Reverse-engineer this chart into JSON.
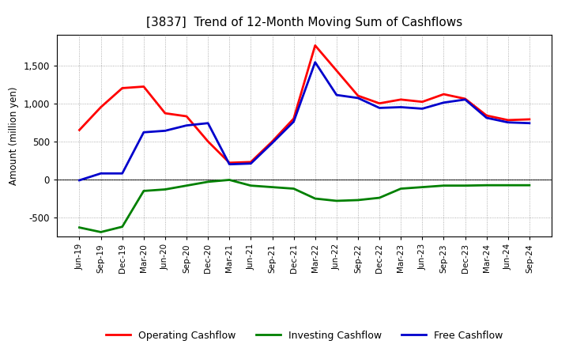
{
  "title": "[3837]  Trend of 12-Month Moving Sum of Cashflows",
  "ylabel": "Amount (million yen)",
  "xlabels": [
    "Jun-19",
    "Sep-19",
    "Dec-19",
    "Mar-20",
    "Jun-20",
    "Sep-20",
    "Dec-20",
    "Mar-21",
    "Jun-21",
    "Sep-21",
    "Dec-21",
    "Mar-22",
    "Jun-22",
    "Sep-22",
    "Dec-22",
    "Mar-23",
    "Jun-23",
    "Sep-23",
    "Dec-23",
    "Mar-24",
    "Jun-24",
    "Sep-24"
  ],
  "operating_cashflow": [
    650,
    950,
    1200,
    1220,
    870,
    830,
    500,
    220,
    230,
    500,
    800,
    1760,
    1430,
    1100,
    1000,
    1050,
    1020,
    1120,
    1060,
    840,
    780,
    790
  ],
  "investing_cashflow": [
    -630,
    -690,
    -620,
    -150,
    -130,
    -80,
    -30,
    -5,
    -80,
    -100,
    -120,
    -250,
    -280,
    -270,
    -240,
    -120,
    -100,
    -80,
    -80,
    -75,
    -75,
    -75
  ],
  "free_cashflow": [
    -10,
    80,
    80,
    620,
    640,
    710,
    740,
    200,
    210,
    480,
    760,
    1540,
    1110,
    1070,
    940,
    950,
    930,
    1010,
    1050,
    810,
    750,
    740
  ],
  "operating_color": "#ff0000",
  "investing_color": "#008000",
  "free_color": "#0000cc",
  "ylim": [
    -750,
    1900
  ],
  "yticks": [
    -500,
    0,
    500,
    1000,
    1500
  ],
  "background_color": "#ffffff",
  "grid_color": "#999999"
}
